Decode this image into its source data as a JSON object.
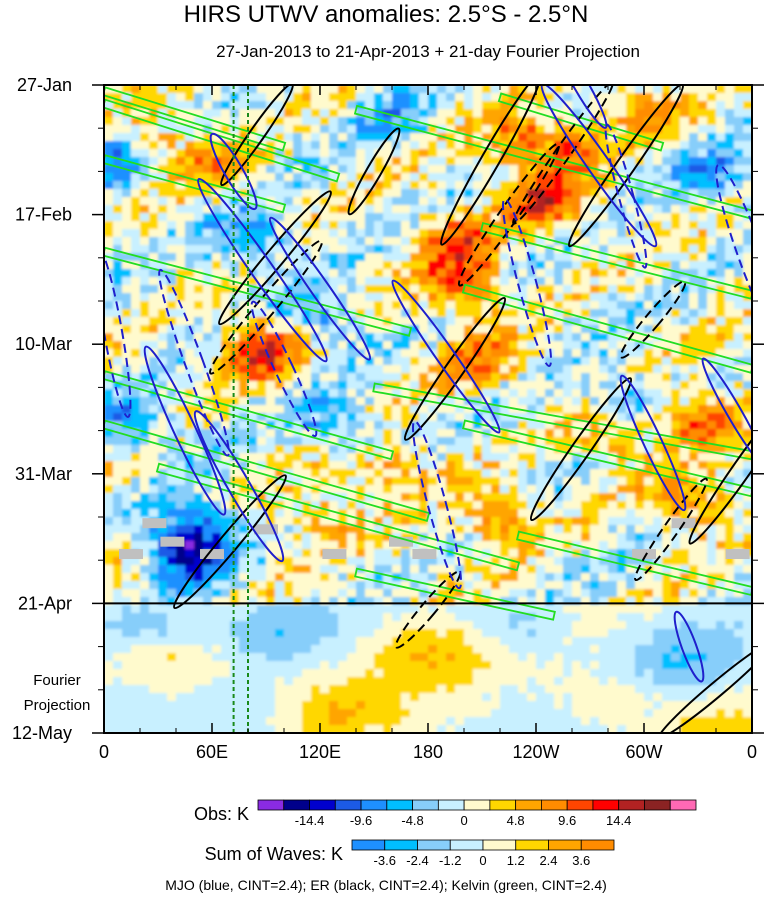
{
  "chart_data": {
    "type": "heatmap",
    "title": "HIRS UTWV anomalies: 2.5°S - 2.5°N",
    "subtitle": "27-Jan-2013 to 21-Apr-2013 + 21-day Fourier Projection",
    "x_ticks": [
      "0",
      "60E",
      "120E",
      "180",
      "120W",
      "60W",
      "0"
    ],
    "x_tick_values": [
      0,
      60,
      120,
      180,
      240,
      300,
      360
    ],
    "y_ticks": [
      "27-Jan",
      "17-Feb",
      "10-Mar",
      "31-Mar",
      "21-Apr",
      "12-May"
    ],
    "y_tick_days": [
      0,
      21,
      42,
      63,
      84,
      105
    ],
    "y_range_days": [
      0,
      105
    ],
    "observation_end_day": 84,
    "projection_label": [
      "Fourier",
      "Projection"
    ],
    "obs_colorbar": {
      "label": "Obs: K",
      "tick_labels": [
        "-14.4",
        "-9.6",
        "-4.8",
        "0",
        "4.8",
        "9.6",
        "14.4"
      ],
      "colors": [
        "#8a2be2",
        "#00008b",
        "#0000cd",
        "#1c5ae6",
        "#1e90ff",
        "#00bfff",
        "#87cefa",
        "#c8f0ff",
        "#fffacd",
        "#ffd700",
        "#ffa500",
        "#ff8c00",
        "#ff4500",
        "#ff0000",
        "#b22222",
        "#8b2323",
        "#ff69b4"
      ]
    },
    "wave_colorbar": {
      "label": "Sum of Waves: K",
      "tick_labels": [
        "-3.6",
        "-2.4",
        "-1.2",
        "0",
        "1.2",
        "2.4",
        "3.6"
      ],
      "colors": [
        "#1e90ff",
        "#00bfff",
        "#87cefa",
        "#c8f0ff",
        "#fffacd",
        "#ffd700",
        "#ffa500",
        "#ff8c00"
      ]
    },
    "legend_text": "MJO (blue, CINT=2.4); ER (black, CINT=2.4); Kelvin (green, CINT=2.4)",
    "wave_colors": {
      "MJO": "#1f1fcc",
      "ER": "#000000",
      "Kelvin": "#22dd22"
    },
    "reference_longitudes": [
      72,
      80
    ],
    "reference_line_color": "#1a8a1a",
    "mjo_contours": [
      {
        "lon": 72,
        "day": 14,
        "rx": 5,
        "ry": 7,
        "rot": -30,
        "dashed": false
      },
      {
        "lon": 88,
        "day": 30,
        "rx": 6,
        "ry": 18,
        "rot": -35,
        "dashed": false
      },
      {
        "lon": 120,
        "day": 33,
        "rx": 5,
        "ry": 14,
        "rot": -35,
        "dashed": false
      },
      {
        "lon": 45,
        "day": 56,
        "rx": 6,
        "ry": 15,
        "rot": -25,
        "dashed": false
      },
      {
        "lon": 75,
        "day": 65,
        "rx": 6,
        "ry": 14,
        "rot": -30,
        "dashed": false
      },
      {
        "lon": 190,
        "day": 44,
        "rx": 5,
        "ry": 15,
        "rot": -35,
        "dashed": false
      },
      {
        "lon": 275,
        "day": 13,
        "rx": 6,
        "ry": 16,
        "rot": -35,
        "dashed": false
      },
      {
        "lon": 265,
        "day": 0,
        "rx": 4,
        "ry": 8,
        "rot": -30,
        "dashed": false
      },
      {
        "lon": 350,
        "day": 53,
        "rx": 4,
        "ry": 10,
        "rot": -30,
        "dashed": false
      },
      {
        "lon": 305,
        "day": 58,
        "rx": 5,
        "ry": 12,
        "rot": -25,
        "dashed": false
      },
      {
        "lon": 325,
        "day": 91,
        "rx": 4,
        "ry": 6,
        "rot": -20,
        "dashed": false
      },
      {
        "lon": 50,
        "day": 45,
        "rx": 5,
        "ry": 16,
        "rot": -20,
        "dashed": true
      },
      {
        "lon": 100,
        "day": 46,
        "rx": 5,
        "ry": 12,
        "rot": -25,
        "dashed": true
      },
      {
        "lon": 185,
        "day": 68,
        "rx": 5,
        "ry": 14,
        "rot": -15,
        "dashed": true
      },
      {
        "lon": 290,
        "day": 18,
        "rx": 4,
        "ry": 12,
        "rot": -15,
        "dashed": true
      },
      {
        "lon": 360,
        "day": 28,
        "rx": 7,
        "ry": 16,
        "rot": -20,
        "dashed": true
      },
      {
        "lon": 5,
        "day": 40,
        "rx": 5,
        "ry": 14,
        "rot": -10,
        "dashed": true
      },
      {
        "lon": 235,
        "day": 32,
        "rx": 5,
        "ry": 14,
        "rot": -15,
        "dashed": true
      }
    ],
    "er_contours": [
      {
        "lon": 85,
        "day": 8,
        "rx": 4,
        "ry": 10,
        "rot": 35,
        "dashed": false
      },
      {
        "lon": 95,
        "day": 28,
        "rx": 5,
        "ry": 14,
        "rot": 40,
        "dashed": false
      },
      {
        "lon": 215,
        "day": 12,
        "rx": 5,
        "ry": 16,
        "rot": 30,
        "dashed": false
      },
      {
        "lon": 195,
        "day": 46,
        "rx": 5,
        "ry": 14,
        "rot": 35,
        "dashed": false
      },
      {
        "lon": 290,
        "day": 13,
        "rx": 5,
        "ry": 16,
        "rot": 35,
        "dashed": false
      },
      {
        "lon": 265,
        "day": 59,
        "rx": 5,
        "ry": 14,
        "rot": 35,
        "dashed": false
      },
      {
        "lon": 355,
        "day": 62,
        "rx": 5,
        "ry": 15,
        "rot": 35,
        "dashed": false
      },
      {
        "lon": 70,
        "day": 74,
        "rx": 5,
        "ry": 14,
        "rot": 40,
        "dashed": false
      },
      {
        "lon": 340,
        "day": 98,
        "rx": 4,
        "ry": 12,
        "rot": 50,
        "dashed": false
      },
      {
        "lon": 150,
        "day": 14,
        "rx": 4,
        "ry": 8,
        "rot": 30,
        "dashed": false
      },
      {
        "lon": 225,
        "day": 21,
        "rx": 5,
        "ry": 14,
        "rot": 35,
        "dashed": true
      },
      {
        "lon": 90,
        "day": 36,
        "rx": 5,
        "ry": 14,
        "rot": 40,
        "dashed": true
      },
      {
        "lon": 255,
        "day": 11,
        "rx": 4,
        "ry": 14,
        "rot": 35,
        "dashed": true
      },
      {
        "lon": 315,
        "day": 72,
        "rx": 4,
        "ry": 10,
        "rot": 35,
        "dashed": true
      },
      {
        "lon": 180,
        "day": 85,
        "rx": 4,
        "ry": 8,
        "rot": 40,
        "dashed": true
      },
      {
        "lon": 305,
        "day": 38,
        "rx": 4,
        "ry": 8,
        "rot": 40,
        "dashed": true
      }
    ],
    "kelvin_lines": [
      {
        "lon_start": 0,
        "day_start": 1,
        "lon_end": 100,
        "day_end": 10
      },
      {
        "lon_start": 0,
        "day_start": 3,
        "lon_end": 130,
        "day_end": 15
      },
      {
        "lon_start": 0,
        "day_start": 12,
        "lon_end": 100,
        "day_end": 20
      },
      {
        "lon_start": 0,
        "day_start": 27,
        "lon_end": 170,
        "day_end": 40
      },
      {
        "lon_start": 0,
        "day_start": 47,
        "lon_end": 160,
        "day_end": 60
      },
      {
        "lon_start": 0,
        "day_start": 55,
        "lon_end": 180,
        "day_end": 70
      },
      {
        "lon_start": 30,
        "day_start": 62,
        "lon_end": 230,
        "day_end": 78
      },
      {
        "lon_start": 140,
        "day_start": 79,
        "lon_end": 250,
        "day_end": 86
      },
      {
        "lon_start": 140,
        "day_start": 4,
        "lon_end": 360,
        "day_end": 21
      },
      {
        "lon_start": 220,
        "day_start": 2,
        "lon_end": 310,
        "day_end": 10
      },
      {
        "lon_start": 210,
        "day_start": 23,
        "lon_end": 360,
        "day_end": 34
      },
      {
        "lon_start": 200,
        "day_start": 33,
        "lon_end": 360,
        "day_end": 46
      },
      {
        "lon_start": 150,
        "day_start": 49,
        "lon_end": 360,
        "day_end": 60
      },
      {
        "lon_start": 200,
        "day_start": 55,
        "lon_end": 360,
        "day_end": 66
      },
      {
        "lon_start": 230,
        "day_start": 73,
        "lon_end": 360,
        "day_end": 82
      }
    ],
    "obs_hotspots": [
      {
        "lon": 88,
        "day": 43,
        "amp": 13
      },
      {
        "lon": 200,
        "day": 32,
        "amp": 11
      },
      {
        "lon": 195,
        "day": 25,
        "amp": 9
      },
      {
        "lon": 245,
        "day": 19,
        "amp": 12
      },
      {
        "lon": 260,
        "day": 10,
        "amp": 8
      },
      {
        "lon": 230,
        "day": 9,
        "amp": 8
      },
      {
        "lon": 330,
        "day": 54,
        "amp": 10
      },
      {
        "lon": 325,
        "day": 68,
        "amp": 9
      },
      {
        "lon": 285,
        "day": 57,
        "amp": 7
      },
      {
        "lon": 60,
        "day": 14,
        "amp": 6
      },
      {
        "lon": 25,
        "day": 9,
        "amp": 6
      },
      {
        "lon": 210,
        "day": 45,
        "amp": 8
      },
      {
        "lon": 160,
        "day": 62,
        "amp": 7
      },
      {
        "lon": 220,
        "day": 70,
        "amp": 8
      },
      {
        "lon": 300,
        "day": 4,
        "amp": 7
      },
      {
        "lon": 120,
        "day": 70,
        "amp": 6
      },
      {
        "lon": 50,
        "day": 72,
        "amp": -12
      },
      {
        "lon": 45,
        "day": 77,
        "amp": -10
      },
      {
        "lon": 80,
        "day": 25,
        "amp": -8
      },
      {
        "lon": 120,
        "day": 38,
        "amp": -7
      },
      {
        "lon": 5,
        "day": 12,
        "amp": -9
      },
      {
        "lon": 15,
        "day": 55,
        "amp": -8
      },
      {
        "lon": 160,
        "day": 5,
        "amp": -6
      },
      {
        "lon": 340,
        "day": 15,
        "amp": -7
      },
      {
        "lon": 290,
        "day": 50,
        "amp": -6
      },
      {
        "lon": 130,
        "day": 55,
        "amp": -7
      }
    ],
    "projection_hotspots": [
      {
        "lon": 40,
        "day": 94,
        "amp": 2.2
      },
      {
        "lon": 180,
        "day": 92,
        "amp": 1.8
      },
      {
        "lon": 130,
        "day": 101,
        "amp": 1.6
      },
      {
        "lon": 280,
        "day": 99,
        "amp": 1.5
      },
      {
        "lon": 20,
        "day": 87,
        "amp": -2.6
      },
      {
        "lon": 230,
        "day": 87,
        "amp": -2.2
      },
      {
        "lon": 100,
        "day": 88,
        "amp": -1.4
      },
      {
        "lon": 320,
        "day": 93,
        "amp": -1.8
      },
      {
        "lon": 340,
        "day": 104,
        "amp": 1.3
      },
      {
        "lon": 80,
        "day": 104,
        "amp": -1.2
      }
    ],
    "missing_data": [
      {
        "lon": 28,
        "day": 71
      },
      {
        "lon": 38,
        "day": 74
      },
      {
        "lon": 15,
        "day": 76
      },
      {
        "lon": 60,
        "day": 76
      },
      {
        "lon": 90,
        "day": 72
      },
      {
        "lon": 128,
        "day": 76
      },
      {
        "lon": 165,
        "day": 74
      },
      {
        "lon": 178,
        "day": 76
      },
      {
        "lon": 300,
        "day": 76
      },
      {
        "lon": 322,
        "day": 71
      },
      {
        "lon": 352,
        "day": 76
      }
    ]
  }
}
